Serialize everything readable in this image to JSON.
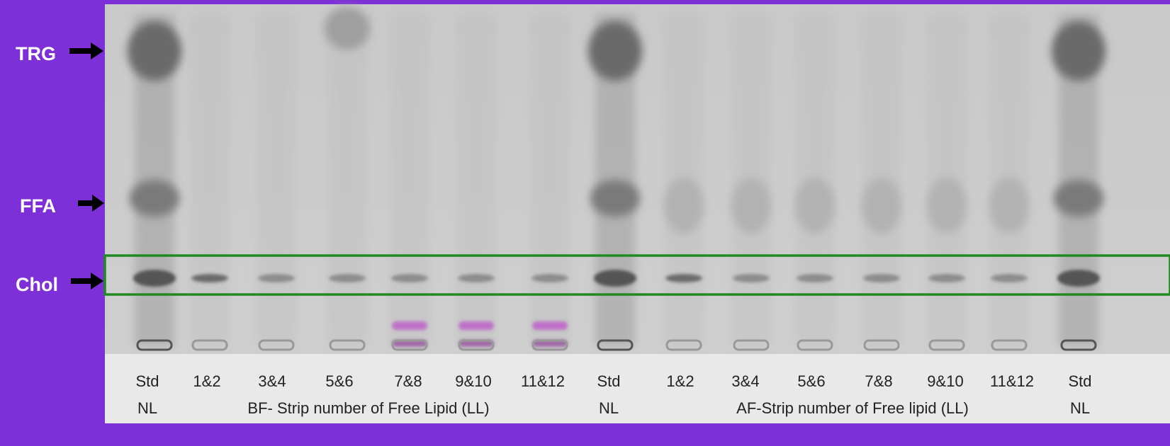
{
  "labels": {
    "bands": [
      "TRG",
      "FFA",
      "Chol"
    ],
    "lanes": [
      "Std",
      "1&2",
      "3&4",
      "5&6",
      "7&8",
      "9&10",
      "11&12",
      "Std",
      "1&2",
      "3&4",
      "5&6",
      "7&8",
      "9&10",
      "11&12",
      "Std"
    ],
    "captions": [
      "NL",
      "BF- Strip number of Free Lipid (LL)",
      "NL",
      "AF-Strip number of  Free lipid (LL)",
      "NL"
    ]
  }
}
